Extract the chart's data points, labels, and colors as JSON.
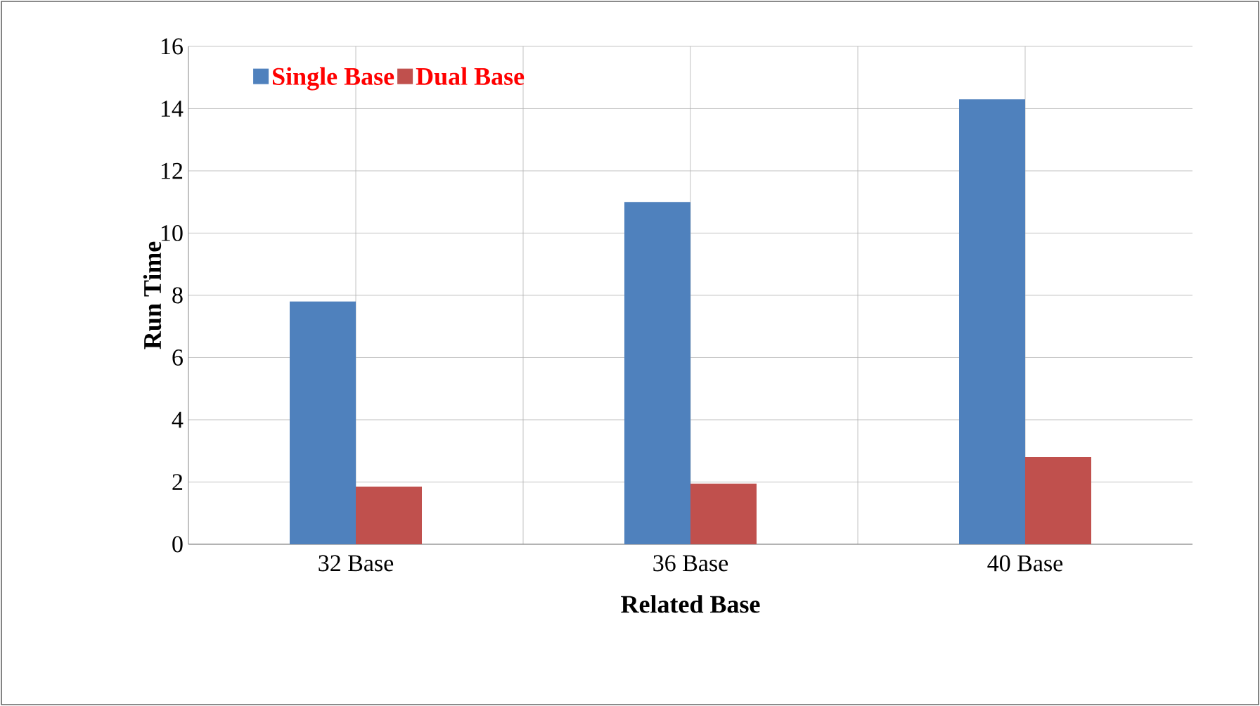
{
  "chart_data": {
    "type": "bar",
    "xlabel": "Related Base",
    "ylabel": "Run Time",
    "categories": [
      "32 Base",
      "36 Base",
      "40 Base"
    ],
    "series": [
      {
        "name": "Single Base",
        "color": "#4f81bd",
        "values": [
          7.8,
          11.0,
          14.3
        ]
      },
      {
        "name": "Dual Base",
        "color": "#c0504d",
        "values": [
          1.85,
          1.95,
          2.8
        ]
      }
    ],
    "ylim": [
      0,
      16
    ],
    "yticks": [
      0,
      2,
      4,
      6,
      8,
      10,
      12,
      14,
      16
    ],
    "grid": true,
    "legend": "top left"
  }
}
